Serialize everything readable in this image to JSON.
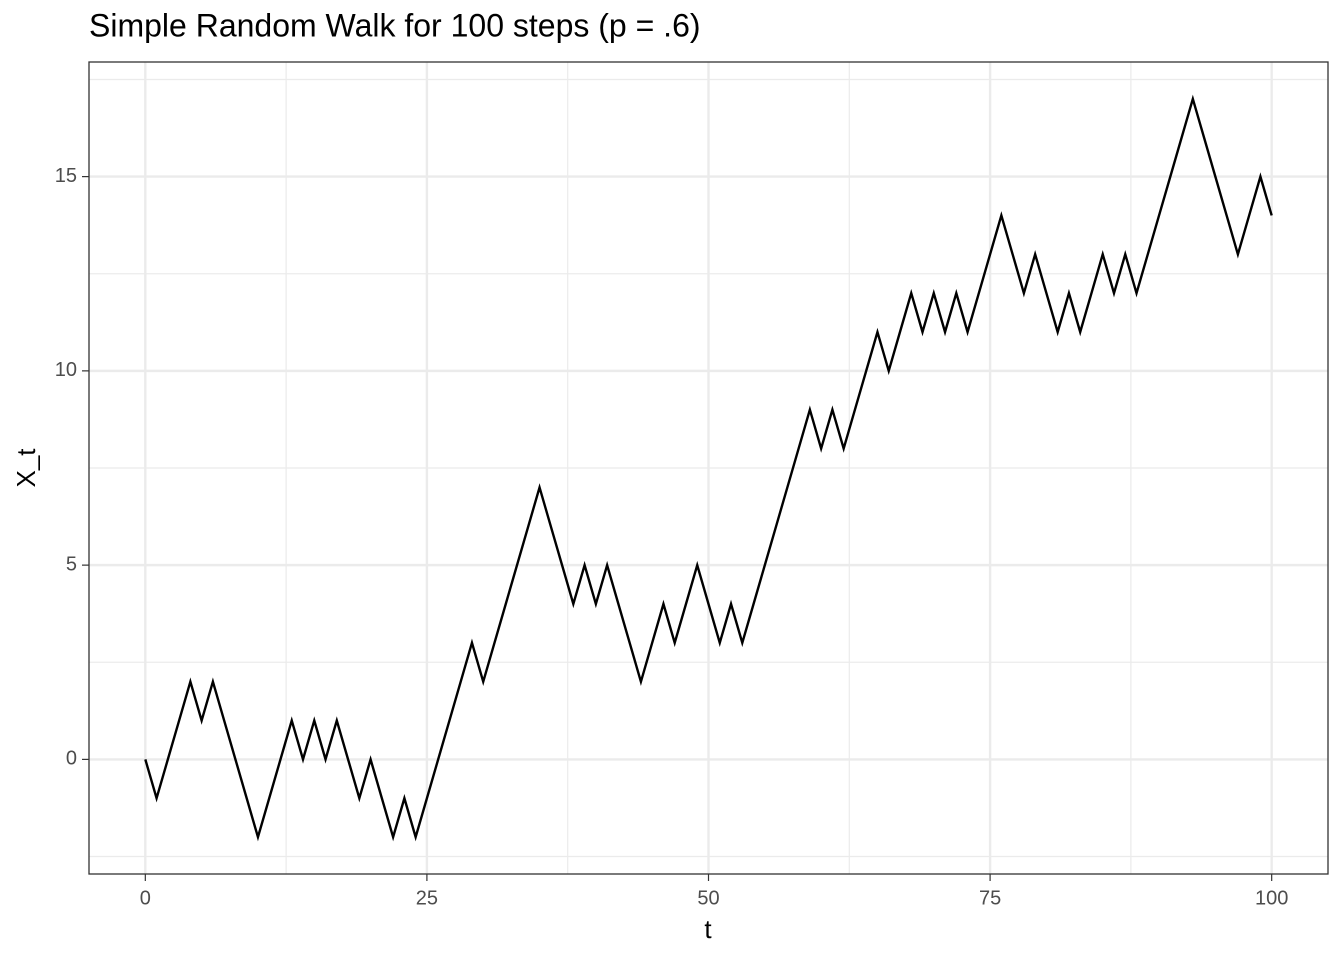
{
  "chart_data": {
    "type": "line",
    "title": "Simple Random Walk for 100 steps (p = .6)",
    "x_label": "t",
    "y_label": "X_t",
    "x": [
      0,
      1,
      2,
      3,
      4,
      5,
      6,
      7,
      8,
      9,
      10,
      11,
      12,
      13,
      14,
      15,
      16,
      17,
      18,
      19,
      20,
      21,
      22,
      23,
      24,
      25,
      26,
      27,
      28,
      29,
      30,
      31,
      32,
      33,
      34,
      35,
      36,
      37,
      38,
      39,
      40,
      41,
      42,
      43,
      44,
      45,
      46,
      47,
      48,
      49,
      50,
      51,
      52,
      53,
      54,
      55,
      56,
      57,
      58,
      59,
      60,
      61,
      62,
      63,
      64,
      65,
      66,
      67,
      68,
      69,
      70,
      71,
      72,
      73,
      74,
      75,
      76,
      77,
      78,
      79,
      80,
      81,
      82,
      83,
      84,
      85,
      86,
      87,
      88,
      89,
      90,
      91,
      92,
      93,
      94,
      95,
      96,
      97,
      98,
      99,
      100
    ],
    "series": [
      {
        "color": "#000000",
        "values": [
          0,
          -1,
          0,
          1,
          2,
          1,
          2,
          1,
          0,
          -1,
          -2,
          -1,
          0,
          1,
          0,
          1,
          0,
          1,
          0,
          -1,
          0,
          -1,
          -2,
          -1,
          -2,
          -1,
          0,
          1,
          2,
          3,
          2,
          3,
          4,
          5,
          6,
          7,
          6,
          5,
          4,
          5,
          4,
          5,
          4,
          3,
          2,
          3,
          4,
          3,
          4,
          5,
          4,
          3,
          4,
          3,
          4,
          5,
          6,
          7,
          8,
          9,
          8,
          9,
          8,
          9,
          10,
          11,
          10,
          11,
          12,
          11,
          12,
          11,
          12,
          11,
          12,
          13,
          14,
          13,
          12,
          13,
          12,
          11,
          12,
          11,
          12,
          13,
          12,
          13,
          12,
          13,
          14,
          15,
          16,
          17,
          16,
          15,
          14,
          13,
          14,
          15,
          14
        ]
      }
    ],
    "xlim": [
      -5,
      105
    ],
    "ylim": [
      -2.95,
      17.95
    ],
    "xticks": [
      0,
      25,
      50,
      75,
      100
    ],
    "yticks": [
      0,
      5,
      10,
      15
    ],
    "x_minor_grid": [
      12.5,
      37.5,
      62.5,
      87.5
    ],
    "y_minor_grid": [
      -2.5,
      2.5,
      7.5,
      12.5,
      17.5
    ],
    "grid": true
  }
}
